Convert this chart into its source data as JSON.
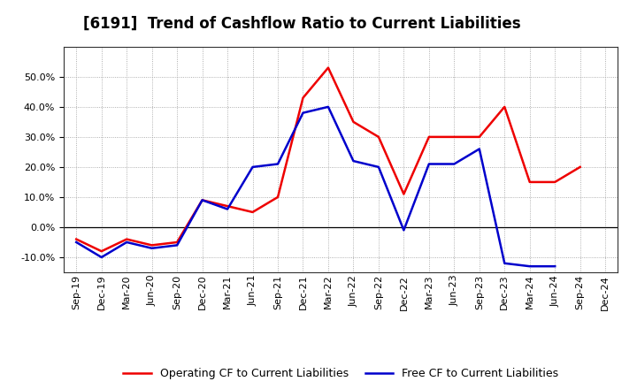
{
  "title": "[6191]  Trend of Cashflow Ratio to Current Liabilities",
  "x_labels": [
    "Sep-19",
    "Dec-19",
    "Mar-20",
    "Jun-20",
    "Sep-20",
    "Dec-20",
    "Mar-21",
    "Jun-21",
    "Sep-21",
    "Dec-21",
    "Mar-22",
    "Jun-22",
    "Sep-22",
    "Dec-22",
    "Mar-23",
    "Jun-23",
    "Sep-23",
    "Dec-23",
    "Mar-24",
    "Jun-24",
    "Sep-24",
    "Dec-24"
  ],
  "operating_cf": [
    -0.04,
    -0.08,
    -0.04,
    -0.06,
    -0.05,
    0.09,
    0.07,
    0.05,
    0.1,
    0.43,
    0.53,
    0.35,
    0.3,
    0.11,
    0.3,
    0.3,
    0.3,
    0.4,
    0.15,
    0.15,
    0.2,
    null
  ],
  "free_cf": [
    -0.05,
    -0.1,
    -0.05,
    -0.07,
    -0.06,
    0.09,
    0.06,
    0.2,
    0.21,
    0.38,
    0.4,
    0.22,
    0.2,
    -0.01,
    0.21,
    0.21,
    0.26,
    -0.12,
    -0.13,
    -0.13,
    null,
    null
  ],
  "operating_color": "#ee0000",
  "free_color": "#0000cc",
  "ylim_min": -0.15,
  "ylim_max": 0.6,
  "yticks": [
    -0.1,
    0.0,
    0.1,
    0.2,
    0.3,
    0.4,
    0.5
  ],
  "legend_operating": "Operating CF to Current Liabilities",
  "legend_free": "Free CF to Current Liabilities",
  "background_color": "#ffffff",
  "grid_color": "#999999",
  "title_fontsize": 12,
  "linewidth": 1.8,
  "tick_fontsize": 8,
  "ytick_fontsize": 8
}
